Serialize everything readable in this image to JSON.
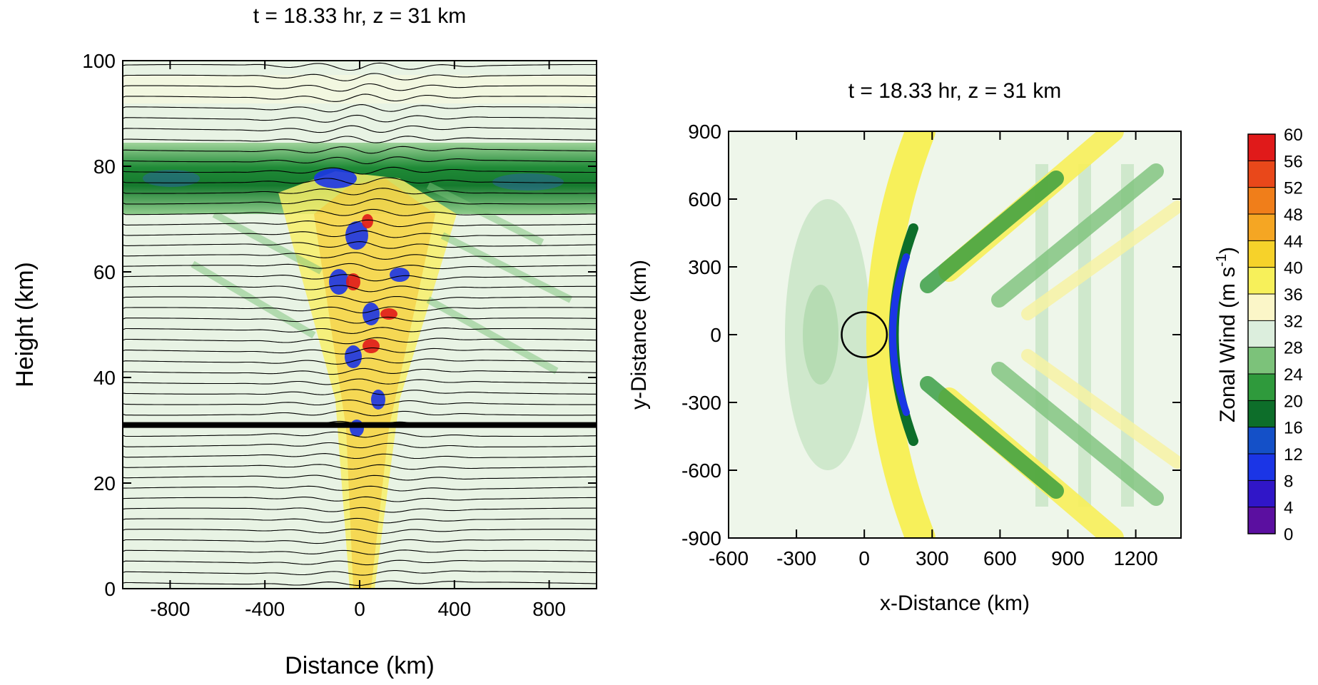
{
  "chart_data": [
    {
      "type": "contour",
      "title": "t = 18.33 hr, z = 31 km",
      "xlabel": "Distance (km)",
      "ylabel": "Height (km)",
      "xlim": [
        -1000,
        1000
      ],
      "ylim": [
        0,
        100
      ],
      "xticks": [
        -800,
        -400,
        0,
        400,
        800
      ],
      "yticks": [
        0,
        20,
        40,
        60,
        80,
        100
      ],
      "hline": 31
    },
    {
      "type": "contour",
      "title": "t = 18.33 hr, z = 31 km",
      "xlabel": "x-Distance (km)",
      "ylabel": "y-Distance (km)",
      "xlim": [
        -600,
        1400
      ],
      "ylim": [
        -900,
        900
      ],
      "xticks": [
        -600,
        -300,
        0,
        300,
        600,
        900,
        1200
      ],
      "yticks": [
        -900,
        -600,
        -300,
        0,
        300,
        600,
        900
      ],
      "circle": {
        "x": 0,
        "y": 0,
        "r": 100
      },
      "colorbar": {
        "label": [
          "Zonal Wind (m s",
          "-1",
          ")"
        ],
        "levels": [
          0,
          4,
          8,
          12,
          16,
          20,
          24,
          28,
          32,
          36,
          40,
          44,
          48,
          52,
          56,
          60
        ],
        "colors": [
          "#5b0fa0",
          "#3016c8",
          "#1b35e6",
          "#1450c8",
          "#0d6e2a",
          "#2f9a3c",
          "#7cc27a",
          "#dceedd",
          "#fbf6c8",
          "#f7f05a",
          "#f6d22a",
          "#f5a623",
          "#f07e1a",
          "#e9481a",
          "#e01a1a"
        ]
      }
    }
  ]
}
